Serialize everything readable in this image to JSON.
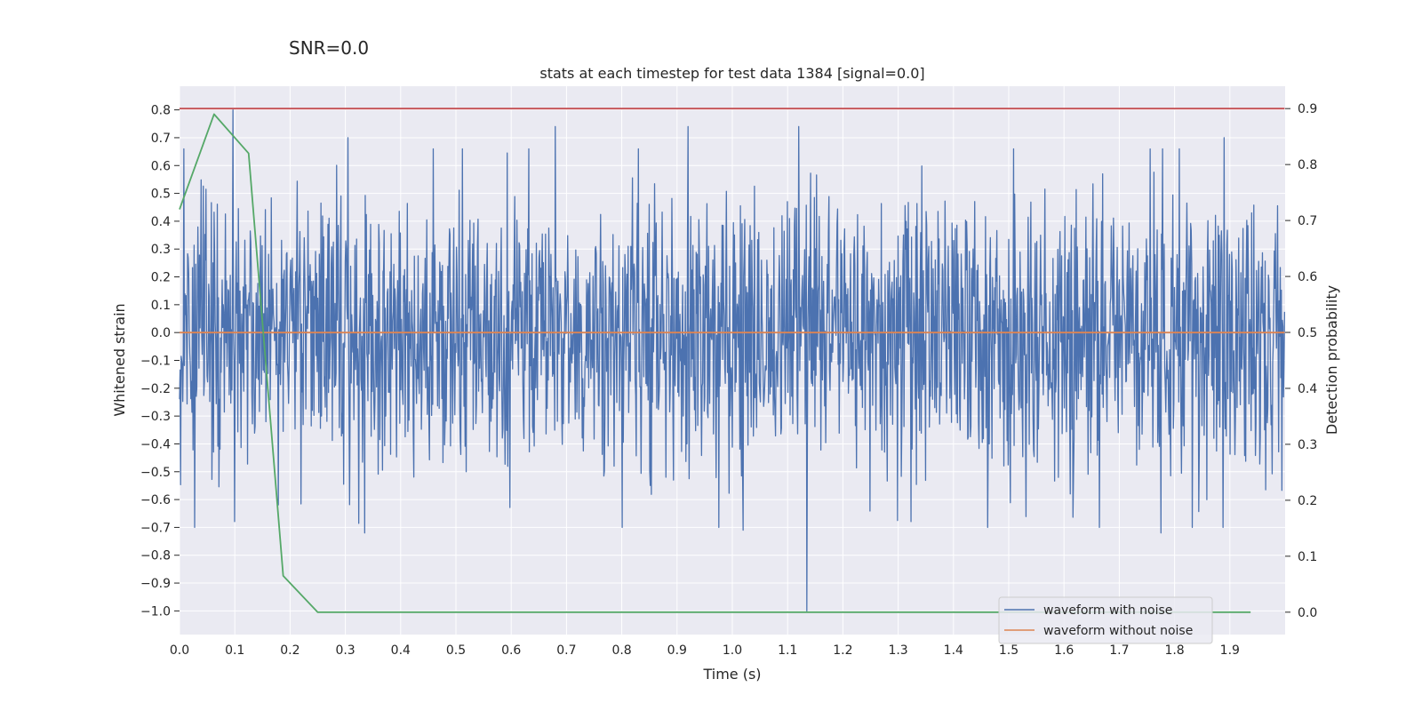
{
  "suptitle": "SNR=0.0",
  "chart_data": {
    "type": "line",
    "title": "stats at each timestep for test data 1384 [signal=0.0]",
    "xlabel": "Time (s)",
    "ylabel": "Whitened strain",
    "y2label": "Detection probability",
    "xlim": [
      0.0,
      2.0
    ],
    "ylim": [
      -1.085,
      0.885
    ],
    "y2lim": [
      -0.04,
      0.94
    ],
    "grid": true,
    "xticks": [
      0.0,
      0.1,
      0.2,
      0.3,
      0.4,
      0.5,
      0.6,
      0.7,
      0.8,
      0.9,
      1.0,
      1.1,
      1.2,
      1.3,
      1.4,
      1.5,
      1.6,
      1.7,
      1.8,
      1.9
    ],
    "xtick_labels": [
      "0.0",
      "0.1",
      "0.2",
      "0.3",
      "0.4",
      "0.5",
      "0.6",
      "0.7",
      "0.8",
      "0.9",
      "1.0",
      "1.1",
      "1.2",
      "1.3",
      "1.4",
      "1.5",
      "1.6",
      "1.7",
      "1.8",
      "1.9"
    ],
    "yticks": [
      0.8,
      0.7,
      0.6,
      0.5,
      0.4,
      0.3,
      0.2,
      0.1,
      0.0,
      -0.1,
      -0.2,
      -0.3,
      -0.4,
      -0.5,
      -0.6,
      -0.7,
      -0.8,
      -0.9,
      -1.0
    ],
    "ytick_labels": [
      "0.8",
      "0.7",
      "0.6",
      "0.5",
      "0.4",
      "0.3",
      "0.2",
      "0.1",
      "0.0",
      "−0.1",
      "−0.2",
      "−0.3",
      "−0.4",
      "−0.5",
      "−0.6",
      "−0.7",
      "−0.8",
      "−0.9",
      "−1.0"
    ],
    "y2ticks": [
      0.9,
      0.8,
      0.7,
      0.6,
      0.5,
      0.4,
      0.3,
      0.2,
      0.1,
      0.0
    ],
    "y2tick_labels": [
      "0.9",
      "0.8",
      "0.7",
      "0.6",
      "0.5",
      "0.4",
      "0.3",
      "0.2",
      "0.1",
      "0.0"
    ],
    "legend": {
      "placement": "lower-right",
      "entries": [
        {
          "label": "waveform with noise",
          "color": "#4c72b0"
        },
        {
          "label": "waveform without noise",
          "color": "#dd8452"
        }
      ]
    },
    "series": [
      {
        "name": "waveform with noise",
        "axis": "left",
        "color": "#4c72b0",
        "noise": {
          "n": 2048,
          "sigma": 0.25,
          "seed": 1384,
          "x_start": 0.0,
          "x_end": 1.999
        },
        "peaks": [
          {
            "x": 0.097,
            "y": 0.8
          },
          {
            "x": 0.68,
            "y": 0.74
          },
          {
            "x": 0.92,
            "y": 0.74
          },
          {
            "x": 1.12,
            "y": 0.74
          },
          {
            "x": 1.89,
            "y": 0.7
          },
          {
            "x": 0.305,
            "y": 0.7
          },
          {
            "x": 1.135,
            "y": -1.0
          },
          {
            "x": 1.775,
            "y": -0.72
          },
          {
            "x": 0.335,
            "y": -0.72
          },
          {
            "x": 1.02,
            "y": -0.71
          }
        ]
      },
      {
        "name": "waveform without noise",
        "axis": "left",
        "color": "#dd8452",
        "x": [
          0.0,
          1.999
        ],
        "y": [
          0.0,
          0.0
        ]
      },
      {
        "axis": "right",
        "color": "#55a868",
        "x": [
          0.0,
          0.0625,
          0.125,
          0.1875,
          0.25,
          0.3125,
          1.9375
        ],
        "y": [
          0.72,
          0.89,
          0.82,
          0.065,
          0.0,
          0.0,
          0.0
        ]
      },
      {
        "axis": "right",
        "color": "#c44e52",
        "x": [
          0.0,
          1.999
        ],
        "y": [
          0.9,
          0.9
        ]
      }
    ]
  }
}
